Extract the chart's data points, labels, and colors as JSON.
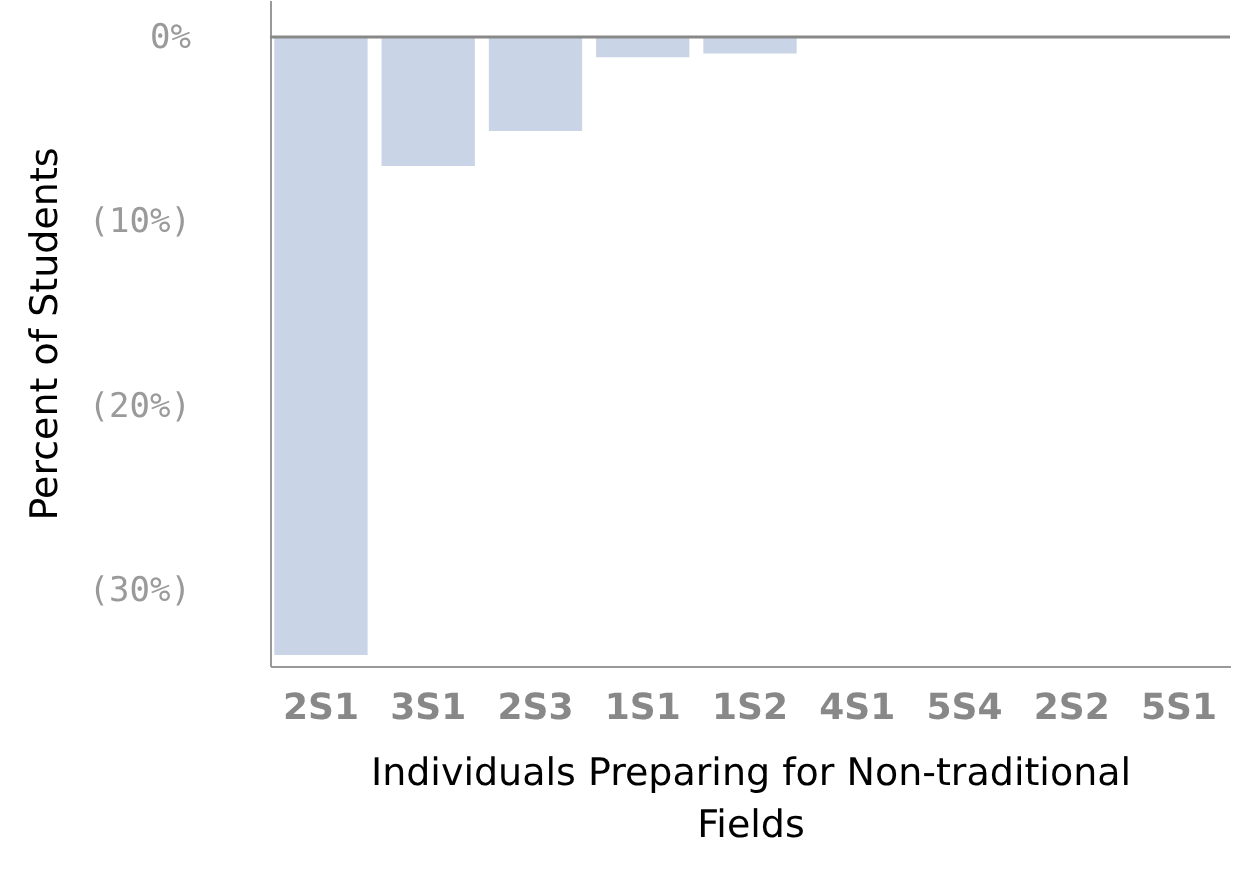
{
  "chart_data": {
    "type": "bar",
    "xlabel": "Individuals Preparing for Non-traditional Fields",
    "ylabel": "Percent of Students",
    "categories": [
      "2S1",
      "3S1",
      "2S3",
      "1S1",
      "1S2",
      "4S1",
      "5S4",
      "2S2",
      "5S1"
    ],
    "values": [
      -33.5,
      -7.0,
      -5.1,
      -1.1,
      -0.9,
      null,
      null,
      null,
      null
    ],
    "color": "#c9d5e6",
    "ylim": [
      -34.1,
      2.0
    ],
    "yticks": [
      {
        "value": 0,
        "label": "0%"
      },
      {
        "value": -10,
        "label": "(10%)"
      },
      {
        "value": -20,
        "label": "(20%)"
      },
      {
        "value": -30,
        "label": "(30%)"
      }
    ],
    "ref_lines": [
      {
        "axis": "y",
        "value": 0,
        "color": "#888888"
      }
    ],
    "grid": false
  }
}
